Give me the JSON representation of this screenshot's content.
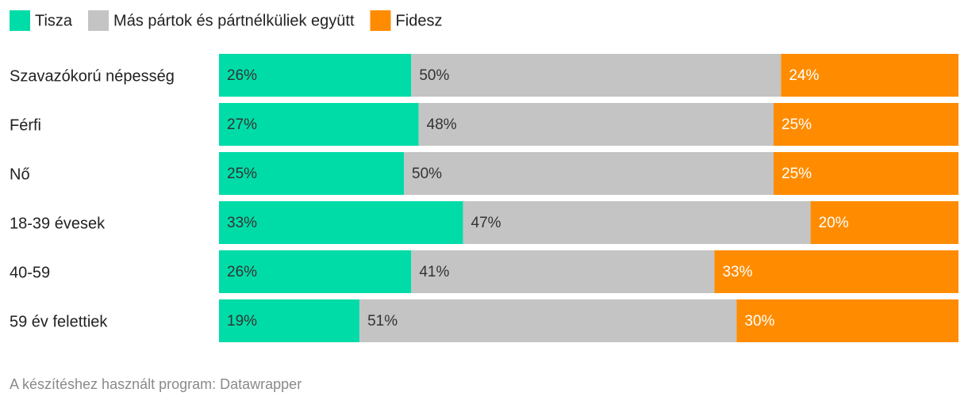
{
  "chart_data": {
    "type": "stacked-bar",
    "categories": [
      "Szavazókorú népesség",
      "Férfi",
      "Nő",
      "18-39 évesek",
      "40-59",
      "59 év felettiek"
    ],
    "series": [
      {
        "name": "Tisza",
        "color": "#00dca8",
        "values": [
          26,
          27,
          25,
          33,
          26,
          19
        ],
        "value_labels": [
          "26%",
          "27%",
          "25%",
          "33%",
          "26%",
          "19%"
        ]
      },
      {
        "name": "Más pártok és pártnélküliek együtt",
        "color": "#c4c4c4",
        "values": [
          50,
          48,
          50,
          47,
          41,
          51
        ],
        "value_labels": [
          "50%",
          "48%",
          "50%",
          "47%",
          "41%",
          "51%"
        ]
      },
      {
        "name": "Fidesz",
        "color": "#ff8c00",
        "values": [
          24,
          25,
          25,
          20,
          33,
          30
        ],
        "value_labels": [
          "24%",
          "25%",
          "25%",
          "20%",
          "33%",
          "30%"
        ]
      }
    ],
    "xlim": [
      0,
      100
    ],
    "note": "A készítéshez használt program: Datawrapper"
  }
}
